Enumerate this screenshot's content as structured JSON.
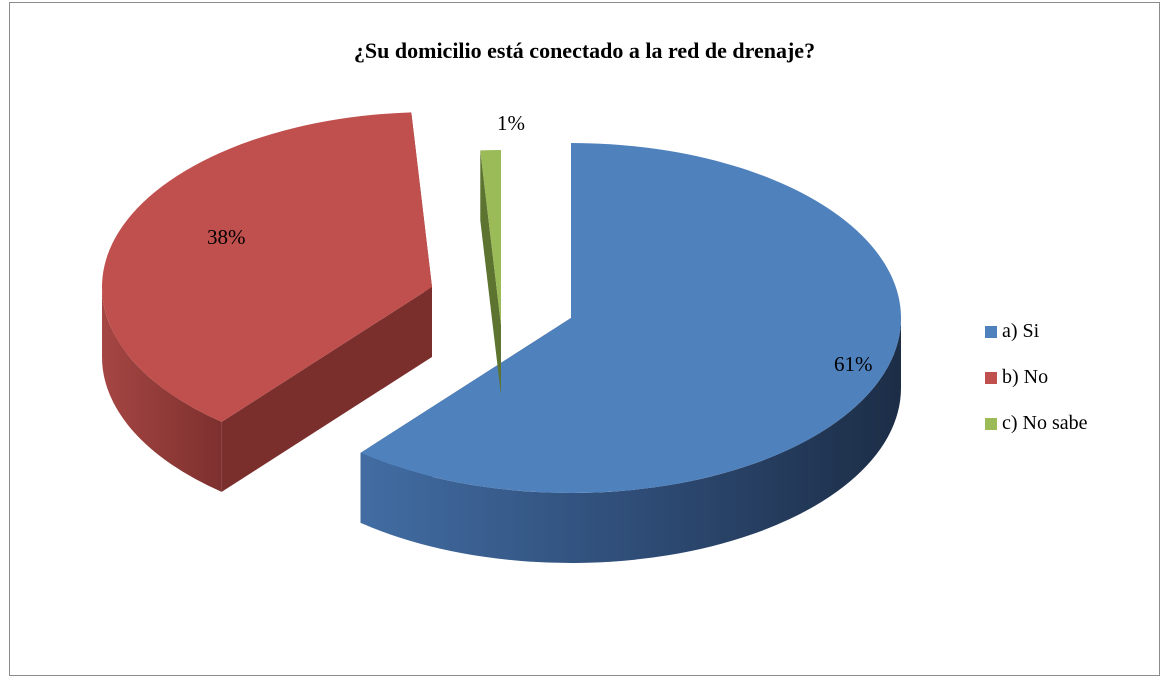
{
  "chart_data": {
    "type": "pie",
    "title": "¿Su domicilio está conectado a la red de drenaje?",
    "categories": [
      "a) Si",
      "b) No",
      "c) No sabe"
    ],
    "values": [
      61,
      38,
      1
    ],
    "data_labels": [
      "61%",
      "38%",
      "1%"
    ],
    "colors": [
      "#4f81bd",
      "#c0504d",
      "#9bbb59"
    ],
    "legend_position": "right",
    "style": "3d-exploded"
  }
}
